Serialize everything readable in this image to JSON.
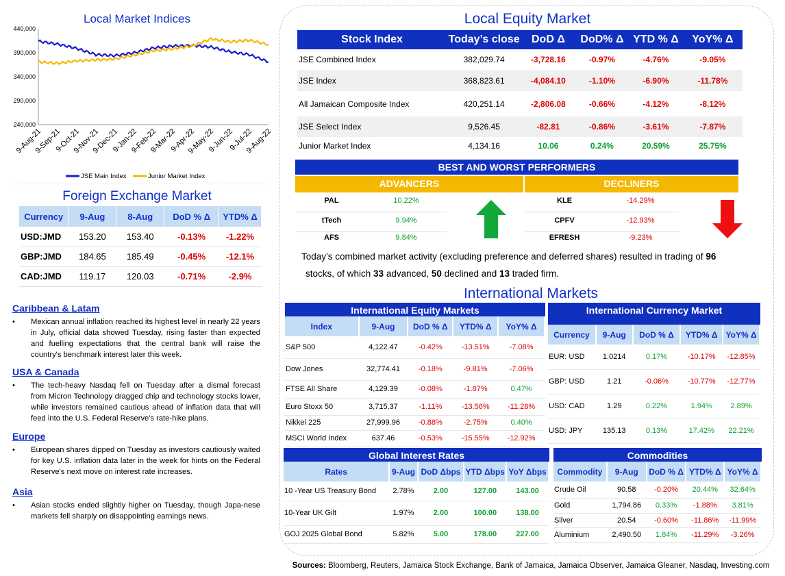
{
  "index_chart": {
    "title": "Local Market Indices",
    "y_ticks": [
      "440,000",
      "390,000",
      "340,000",
      "290,000",
      "240,000"
    ],
    "x_ticks": [
      "9-Aug-21",
      "9-Sep-21",
      "9-Oct-21",
      "9-Nov-21",
      "9-Dec-21",
      "9-Jan-22",
      "9-Feb-22",
      "9-Mar-22",
      "9-Apr-22",
      "9-May-22",
      "9-Jun-22",
      "9-Jul-22",
      "9-Aug-22"
    ],
    "legend": [
      "JSE Main Index",
      "Junior Market Index"
    ],
    "colors": {
      "main": "#1a1ad0",
      "junior": "#f5b800"
    }
  },
  "chart_data": {
    "type": "line",
    "title": "Local Market Indices",
    "ylim": [
      240000,
      440000
    ],
    "x": [
      "9-Aug-21",
      "9-Sep-21",
      "9-Oct-21",
      "9-Nov-21",
      "9-Dec-21",
      "9-Jan-22",
      "9-Feb-22",
      "9-Mar-22",
      "9-Apr-22",
      "9-May-22",
      "9-Jun-22",
      "9-Jul-22",
      "9-Aug-22"
    ],
    "series": [
      {
        "name": "JSE Main Index",
        "values": [
          414000,
          408000,
          399000,
          386000,
          384000,
          390000,
          400000,
          404000,
          405000,
          402000,
          392000,
          386000,
          371000
        ]
      },
      {
        "name": "Junior Market Index",
        "values": [
          371000,
          368000,
          373000,
          375000,
          377000,
          385000,
          394000,
          398000,
          404000,
          419000,
          413000,
          416000,
          407000
        ]
      }
    ]
  },
  "fx": {
    "title": "Foreign Exchange Market",
    "headers": [
      "Currency",
      "9-Aug",
      "8-Aug",
      "DoD % Δ",
      "YTD% Δ"
    ],
    "rows": [
      [
        "USD:JMD",
        "153.20",
        "153.40",
        "-0.13%",
        "-1.22%"
      ],
      [
        "GBP:JMD",
        "184.65",
        "185.49",
        "-0.45%",
        "-12.1%"
      ],
      [
        "CAD:JMD",
        "119.17",
        "120.03",
        "-0.71%",
        "-2.9%"
      ]
    ]
  },
  "news": [
    {
      "head": "Caribbean & Latam",
      "body": "Mexican annual inflation reached its highest level in nearly 22 years in July, official data showed Tuesday, rising faster than expected and fuelling expectations that the central bank will raise the country's benchmark interest later this week."
    },
    {
      "head": "USA & Canada",
      "body": "The tech-heavy Nasdaq fell on Tuesday after a dismal forecast from Micron Technology dragged chip and technology stocks lower, while investors remained cautious ahead of inflation data that will feed into the U.S. Federal Reserve's rate-hike plans."
    },
    {
      "head": "Europe",
      "body": "European shares dipped on Tuesday as investors cautiously waited for key U.S. inflation data later in the week for hints on the Federal Reserve's next move on interest rate increases."
    },
    {
      "head": "Asia",
      "body": "Asian stocks ended slightly higher on Tuesday, though Japa-nese markets fell sharply on disappointing earnings news."
    }
  ],
  "equity": {
    "title": "Local Equity Market",
    "headers": [
      "Stock Index",
      "Today’s close",
      "DoD  Δ",
      "DoD% Δ",
      "YTD % Δ",
      "YoY% Δ"
    ],
    "rows": [
      [
        "JSE Combined Index",
        "382,029.74",
        "-3,728.16",
        "-0.97%",
        "-4.76%",
        "-9.05%"
      ],
      [
        "JSE Index",
        "368,823.61",
        "-4,084.10",
        "-1.10%",
        "-6.90%",
        "-11.78%"
      ],
      [
        "All Jamaican Composite Index",
        "420,251.14",
        "-2,806.08",
        "-0.66%",
        "-4.12%",
        "-8.12%"
      ],
      [
        "JSE Select Index",
        "9,526.45",
        "-82.81",
        "-0.86%",
        "-3.61%",
        "-7.87%"
      ],
      [
        "Junior Market Index",
        "4,134.16",
        "10.06",
        "0.24%",
        "20.59%",
        "25.75%"
      ]
    ]
  },
  "performers": {
    "title": "BEST AND WORST PERFORMERS",
    "adv_label": "ADVANCERS",
    "dec_label": "DECLINERS",
    "advancers": [
      [
        "PAL",
        "10.22%"
      ],
      [
        "tTech",
        "9.94%"
      ],
      [
        "AFS",
        "9.84%"
      ]
    ],
    "decliners": [
      [
        "KLE",
        "-14.29%"
      ],
      [
        "CPFV",
        "-12.93%"
      ],
      [
        "EFRESH",
        "-9.23%"
      ]
    ]
  },
  "summary": {
    "part1": "Today’s combined market activity (excluding preference and deferred shares) resulted in trading of ",
    "traded": "96",
    "part2": " stocks, of which ",
    "advanced": "33",
    "part3": " advanced, ",
    "declined": "50",
    "part4": " declined and ",
    "firm": "13",
    "part5": " traded firm."
  },
  "intl": {
    "title": "International Markets",
    "equity": {
      "title": "International Equity Markets",
      "headers": [
        "Index",
        "9-Aug",
        "DoD % Δ",
        "YTD% Δ",
        "YoY% Δ"
      ],
      "rows": [
        [
          "S&P 500",
          "4,122.47",
          "-0.42%",
          "-13.51%",
          "-7.08%"
        ],
        [
          "Dow Jones",
          "32,774.41",
          "-0.18%",
          "-9.81%",
          "-7.06%"
        ],
        [
          "FTSE All Share",
          "4,129.39",
          "-0.08%",
          "-1.87%",
          "0.47%"
        ],
        [
          "Euro Stoxx 50",
          "3,715.37",
          "-1.11%",
          "-13.56%",
          "-11.28%"
        ],
        [
          "Nikkei 225",
          "27,999.96",
          "-0.88%",
          "-2.75%",
          "0.40%"
        ],
        [
          "MSCI World Index",
          "637.46",
          "-0.53%",
          "-15.55%",
          "-12.92%"
        ]
      ]
    },
    "currency": {
      "title": "International Currency Market",
      "headers": [
        "Currency",
        "9-Aug",
        "DoD % Δ",
        "YTD% Δ",
        "YoY% Δ"
      ],
      "rows": [
        [
          "EUR: USD",
          "1.0214",
          "0.17%",
          "-10.17%",
          "-12.85%"
        ],
        [
          "GBP: USD",
          "1.21",
          "-0.06%",
          "-10.77%",
          "-12.77%"
        ],
        [
          "USD: CAD",
          "1.29",
          "0.22%",
          "1.94%",
          "2.89%"
        ],
        [
          "USD: JPY",
          "135.13",
          "0.13%",
          "17.42%",
          "22.21%"
        ]
      ]
    },
    "rates": {
      "title": "Global Interest Rates",
      "headers": [
        "Rates",
        "9-Aug",
        "DoD Δbps",
        "YTD Δbps",
        "YoY Δbps"
      ],
      "rows": [
        [
          "10 -Year US Treasury Bond",
          "2.78%",
          "2.00",
          "127.00",
          "143.00"
        ],
        [
          "10-Year UK Gilt",
          "1.97%",
          "2.00",
          "100.00",
          "138.00"
        ],
        [
          "GOJ 2025 Global Bond",
          "5.82%",
          "5.00",
          "178.00",
          "227.00"
        ]
      ]
    },
    "commodities": {
      "title": "Commodities",
      "headers": [
        "Commodity",
        "9-Aug",
        "DoD % Δ",
        "YTD% Δ",
        "YoY% Δ"
      ],
      "rows": [
        [
          "Crude Oil",
          "90.58",
          "-0.20%",
          "20.44%",
          "32.64%"
        ],
        [
          "Gold",
          "1,794.86",
          "0.33%",
          "-1.88%",
          "3.81%"
        ],
        [
          "Silver",
          "20.54",
          "-0.60%",
          "-11.86%",
          "-11.99%"
        ],
        [
          "Aluminium",
          "2,490.50",
          "1.84%",
          "-11.29%",
          "-3.26%"
        ]
      ]
    }
  },
  "sources": {
    "label": "Sources:",
    "text": " Bloomberg, Reuters, Jamaica Stock Exchange, Bank of Jamaica, Jamaica Observer, Jamaica Gleaner, Nasdaq, Investing.com"
  }
}
